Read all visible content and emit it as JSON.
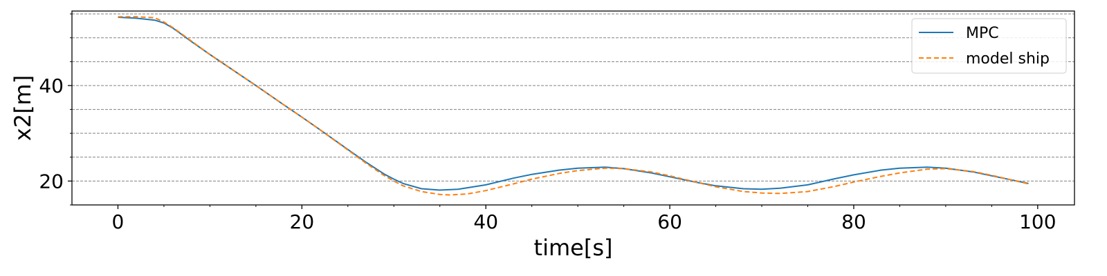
{
  "chart_data": {
    "type": "line",
    "title": "",
    "xlabel": "time[s]",
    "ylabel": "x2[m]",
    "xlim": [
      -5,
      104
    ],
    "ylim": [
      15,
      55.6
    ],
    "xticks": [
      0,
      20,
      40,
      60,
      80,
      100
    ],
    "xticks_minor": [
      5,
      10,
      15,
      25,
      30,
      35,
      45,
      50,
      55,
      65,
      70,
      75,
      85,
      90,
      95
    ],
    "yticks": [
      20,
      40
    ],
    "ygrid": [
      15,
      20,
      25,
      30,
      35,
      40,
      45,
      50,
      55
    ],
    "grid": "horizontal dashed",
    "legend_position": "top-right",
    "colors": {
      "mpc": "#1f77b4",
      "model_ship": "#ff7f0e",
      "grid": "#808080"
    },
    "series": [
      {
        "name": "MPC",
        "style": "solid",
        "x": [
          0,
          2,
          4,
          5,
          6,
          8,
          10,
          12,
          15,
          18,
          20,
          22,
          25,
          27,
          29,
          30,
          31,
          33,
          35,
          37,
          40,
          43,
          45,
          48,
          50,
          53,
          55,
          58,
          60,
          63,
          65,
          68,
          70,
          72,
          75,
          78,
          80,
          83,
          85,
          88,
          90,
          93,
          95,
          97,
          99
        ],
        "y": [
          54.3,
          54.1,
          53.7,
          53.1,
          52.0,
          49.2,
          46.5,
          43.9,
          40.0,
          36.0,
          33.4,
          30.7,
          26.6,
          23.9,
          21.4,
          20.4,
          19.5,
          18.4,
          18.1,
          18.3,
          19.2,
          20.6,
          21.4,
          22.3,
          22.7,
          22.9,
          22.6,
          21.7,
          20.9,
          19.7,
          19.0,
          18.4,
          18.3,
          18.5,
          19.2,
          20.5,
          21.3,
          22.3,
          22.7,
          22.9,
          22.7,
          21.9,
          21.1,
          20.3,
          19.5
        ]
      },
      {
        "name": "model ship",
        "style": "dashed",
        "x": [
          0,
          2,
          4,
          5,
          6,
          8,
          10,
          12,
          15,
          18,
          20,
          22,
          25,
          27,
          29,
          30,
          31,
          33,
          35,
          36,
          38,
          40,
          43,
          45,
          48,
          50,
          53,
          55,
          58,
          60,
          63,
          65,
          68,
          70,
          72,
          75,
          78,
          80,
          83,
          85,
          88,
          90,
          93,
          95,
          97,
          99
        ],
        "y": [
          54.4,
          54.4,
          54.2,
          53.3,
          52.1,
          49.3,
          46.5,
          43.9,
          40.0,
          36.0,
          33.4,
          30.7,
          26.5,
          23.7,
          21.1,
          20.0,
          19.0,
          17.8,
          17.2,
          17.1,
          17.3,
          18.0,
          19.4,
          20.4,
          21.6,
          22.2,
          22.7,
          22.6,
          21.9,
          21.1,
          19.7,
          18.8,
          17.8,
          17.5,
          17.4,
          17.8,
          18.9,
          19.8,
          21.0,
          21.7,
          22.5,
          22.6,
          22.0,
          21.2,
          20.3,
          19.4
        ]
      }
    ]
  }
}
